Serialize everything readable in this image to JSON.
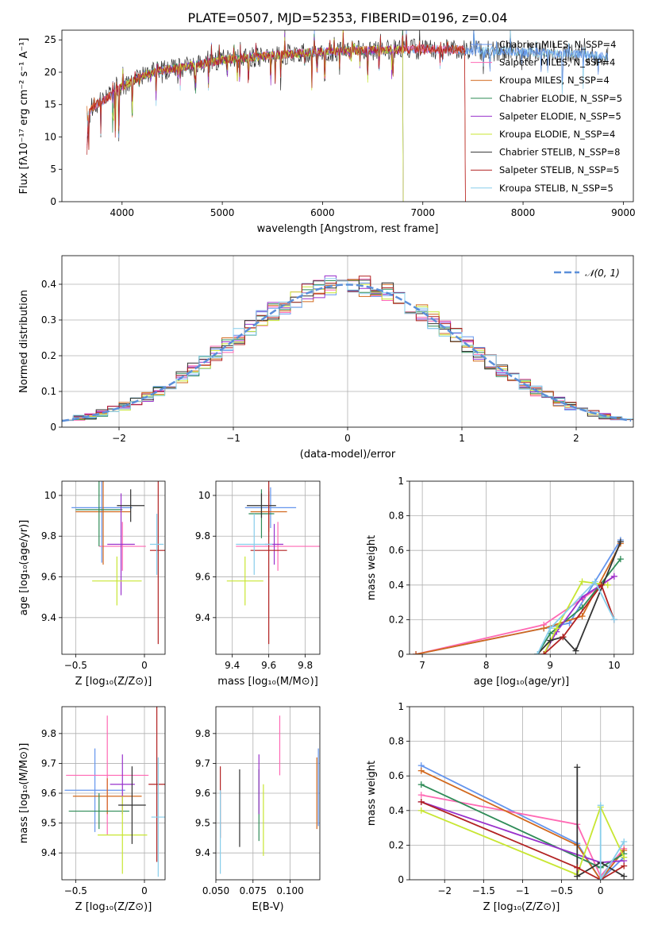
{
  "figure": {
    "title": "PLATE=0507, MJD=52353, FIBERID=0196, z=0.04"
  },
  "colors": [
    "#6495ed",
    "#ff69b4",
    "#d2691e",
    "#2e8b57",
    "#9932cc",
    "#c8e632",
    "#333333",
    "#b22222",
    "#87ceeb"
  ],
  "chart_data": [
    {
      "id": "spectrum",
      "type": "line",
      "xlabel": "wavelength [Angstrom, rest frame]",
      "ylabel": "Flux [fλ10⁻¹⁷ erg cm⁻² s⁻¹ A⁻¹]",
      "xlim": [
        3400,
        9100
      ],
      "ylim": [
        0,
        26.5
      ],
      "xticks": [
        4000,
        5000,
        6000,
        7000,
        8000,
        9000
      ],
      "yticks": [
        0,
        5,
        10,
        15,
        20,
        25
      ],
      "grid": false,
      "legend_position": "upper right",
      "continuum": {
        "x": [
          3650,
          3700,
          3800,
          3900,
          4000,
          4100,
          4200,
          4400,
          4600,
          4800,
          5000,
          5200,
          5500,
          6000,
          6500,
          7000,
          7500,
          8000,
          8500,
          8850
        ],
        "y": [
          13,
          14.5,
          15.5,
          16.5,
          17.8,
          18.6,
          19.5,
          20.3,
          20.8,
          21.3,
          21.9,
          22.2,
          22.6,
          23.2,
          23.4,
          23.6,
          23.4,
          23.1,
          22.8,
          22.4
        ]
      },
      "series": [
        {
          "name": "Chabrier MILES, N_SSP=4",
          "x_range": [
            3650,
            8850
          ]
        },
        {
          "name": "Salpeter MILES, N_SSP=4",
          "x_range": [
            3650,
            7420
          ]
        },
        {
          "name": "Kroupa MILES, N_SSP=4",
          "x_range": [
            3650,
            7420
          ]
        },
        {
          "name": "Chabrier ELODIE, N_SSP=5",
          "x_range": [
            3900,
            6800
          ]
        },
        {
          "name": "Salpeter ELODIE, N_SSP=5",
          "x_range": [
            3900,
            6800
          ]
        },
        {
          "name": "Kroupa ELODIE, N_SSP=4",
          "x_range": [
            3900,
            6800
          ]
        },
        {
          "name": "Chabrier STELIB, N_SSP=8",
          "x_range": [
            3650,
            8850
          ]
        },
        {
          "name": "Salpeter STELIB, N_SSP=5",
          "x_range": [
            3650,
            7420
          ]
        },
        {
          "name": "Kroupa STELIB, N_SSP=5",
          "x_range": [
            3650,
            8850
          ]
        }
      ]
    },
    {
      "id": "residuals",
      "type": "histogram",
      "xlabel": "(data-model)/error",
      "ylabel": "Normed distribution",
      "xlim": [
        -2.5,
        2.5
      ],
      "ylim": [
        0,
        0.48
      ],
      "xticks": [
        -2,
        -1,
        0,
        1,
        2
      ],
      "yticks": [
        0.0,
        0.1,
        0.2,
        0.3,
        0.4
      ],
      "grid": true,
      "legend_position": "upper right",
      "reference": {
        "name": "𝒩(0, 1)",
        "mean": 0,
        "sigma": 1
      },
      "bin_width": 0.1
    },
    {
      "id": "age_vs_Z",
      "type": "errorbar",
      "xlabel": "Z [log₁₀(Z/Z⊙)]",
      "ylabel": "age  [log₁₀(age/yr)]",
      "xlim": [
        -0.6,
        0.15
      ],
      "ylim": [
        9.22,
        10.07
      ],
      "xticks": [
        -0.5,
        0.0
      ],
      "yticks": [
        9.4,
        9.6,
        9.8,
        10.0
      ],
      "grid": true,
      "points": [
        {
          "x": -0.31,
          "y": 9.94,
          "xerr": 0.22,
          "yerr": 0.27
        },
        {
          "x": -0.16,
          "y": 9.75,
          "xerr": 0.17,
          "yerr": 0.12
        },
        {
          "x": -0.3,
          "y": 9.92,
          "xerr": 0.2,
          "yerr": 0.26
        },
        {
          "x": -0.33,
          "y": 9.93,
          "xerr": 0.17,
          "yerr": 0.18
        },
        {
          "x": -0.17,
          "y": 9.76,
          "xerr": 0.1,
          "yerr": 0.25
        },
        {
          "x": -0.2,
          "y": 9.58,
          "xerr": 0.18,
          "yerr": 0.12
        },
        {
          "x": -0.1,
          "y": 9.95,
          "xerr": 0.1,
          "yerr": 0.08
        },
        {
          "x": 0.1,
          "y": 9.73,
          "xerr": 0.06,
          "yerr": 0.46
        },
        {
          "x": 0.09,
          "y": 9.76,
          "xerr": 0.05,
          "yerr": 0.15
        }
      ]
    },
    {
      "id": "age_vs_mass",
      "type": "errorbar",
      "xlabel": "mass [log₁₀(M/M⊙)]",
      "ylabel": "",
      "xlim": [
        9.31,
        9.88
      ],
      "ylim": [
        9.22,
        10.07
      ],
      "xticks": [
        9.4,
        9.6,
        9.8
      ],
      "yticks": [
        9.4,
        9.6,
        9.8,
        10.0
      ],
      "grid": true,
      "points": [
        {
          "x": 9.61,
          "y": 9.94,
          "xerr": 0.14,
          "yerr": 0.1
        },
        {
          "x": 9.65,
          "y": 9.75,
          "xerr": 0.23,
          "yerr": 0.12
        },
        {
          "x": 9.6,
          "y": 9.92,
          "xerr": 0.1,
          "yerr": 0.1
        },
        {
          "x": 9.56,
          "y": 9.91,
          "xerr": 0.07,
          "yerr": 0.12
        },
        {
          "x": 9.63,
          "y": 9.76,
          "xerr": 0.05,
          "yerr": 0.1
        },
        {
          "x": 9.47,
          "y": 9.58,
          "xerr": 0.1,
          "yerr": 0.12
        },
        {
          "x": 9.56,
          "y": 9.95,
          "xerr": 0.08,
          "yerr": 0.06
        },
        {
          "x": 9.6,
          "y": 9.73,
          "xerr": 0.1,
          "yerr": 0.46
        },
        {
          "x": 9.52,
          "y": 9.76,
          "xerr": 0.1,
          "yerr": 0.15
        }
      ]
    },
    {
      "id": "weight_vs_age",
      "type": "line",
      "xlabel": "age  [log₁₀(age/yr)]",
      "ylabel": "mass weight",
      "xlim": [
        6.8,
        10.3
      ],
      "ylim": [
        0,
        1
      ],
      "xticks": [
        7,
        8,
        9,
        10
      ],
      "yticks": [
        0.0,
        0.2,
        0.4,
        0.6,
        0.8,
        1.0
      ],
      "grid": true,
      "series": [
        {
          "x": [
            6.9,
            8.9,
            9.3,
            10.1
          ],
          "y": [
            0.0,
            0.15,
            0.18,
            0.66
          ]
        },
        {
          "x": [
            6.9,
            8.9,
            9.5,
            10.0
          ],
          "y": [
            0.0,
            0.17,
            0.32,
            0.45
          ]
        },
        {
          "x": [
            6.9,
            8.9,
            9.5,
            10.1
          ],
          "y": [
            0.0,
            0.15,
            0.22,
            0.64
          ]
        },
        {
          "x": [
            8.8,
            9.0,
            9.5,
            10.1
          ],
          "y": [
            0.0,
            0.12,
            0.27,
            0.55
          ]
        },
        {
          "x": [
            8.9,
            9.1,
            9.5,
            10.0
          ],
          "y": [
            0.0,
            0.13,
            0.33,
            0.45
          ]
        },
        {
          "x": [
            8.9,
            9.1,
            9.5,
            9.9
          ],
          "y": [
            0.0,
            0.15,
            0.42,
            0.4
          ]
        },
        {
          "x": [
            8.8,
            9.0,
            9.2,
            9.4,
            10.1
          ],
          "y": [
            0.0,
            0.08,
            0.1,
            0.02,
            0.65
          ]
        },
        {
          "x": [
            8.9,
            9.2,
            9.8,
            10.0
          ],
          "y": [
            0.0,
            0.1,
            0.4,
            0.2
          ]
        },
        {
          "x": [
            8.8,
            9.0,
            9.7,
            10.0
          ],
          "y": [
            0.0,
            0.15,
            0.42,
            0.2
          ]
        }
      ]
    },
    {
      "id": "mass_vs_Z",
      "type": "errorbar",
      "xlabel": "Z [log₁₀(Z/Z⊙)]",
      "ylabel": "mass [log₁₀(M/M⊙)]",
      "xlim": [
        -0.6,
        0.15
      ],
      "ylim": [
        9.31,
        9.89
      ],
      "xticks": [
        -0.5,
        0.0
      ],
      "yticks": [
        9.4,
        9.5,
        9.6,
        9.7,
        9.8
      ],
      "grid": true,
      "points": [
        {
          "x": -0.36,
          "y": 9.61,
          "xerr": 0.22,
          "yerr": 0.14
        },
        {
          "x": -0.27,
          "y": 9.66,
          "xerr": 0.3,
          "yerr": 0.2
        },
        {
          "x": -0.27,
          "y": 9.59,
          "xerr": 0.25,
          "yerr": 0.06
        },
        {
          "x": -0.33,
          "y": 9.54,
          "xerr": 0.22,
          "yerr": 0.06
        },
        {
          "x": -0.16,
          "y": 9.63,
          "xerr": 0.09,
          "yerr": 0.1
        },
        {
          "x": -0.16,
          "y": 9.46,
          "xerr": 0.18,
          "yerr": 0.13
        },
        {
          "x": -0.09,
          "y": 9.56,
          "xerr": 0.1,
          "yerr": 0.13
        },
        {
          "x": 0.09,
          "y": 9.63,
          "xerr": 0.06,
          "yerr": 0.26
        },
        {
          "x": 0.1,
          "y": 9.52,
          "xerr": 0.05,
          "yerr": 0.2
        }
      ]
    },
    {
      "id": "mass_vs_ebv",
      "type": "errorbar",
      "xlabel": "E(B-V)",
      "ylabel": "",
      "xlim": [
        0.05,
        0.12
      ],
      "ylim": [
        9.31,
        9.89
      ],
      "xticks": [
        0.05,
        0.075,
        0.1
      ],
      "xtick_labels": [
        "0.050",
        "0.075",
        "0.100"
      ],
      "yticks": [
        9.4,
        9.5,
        9.6,
        9.7,
        9.8
      ],
      "grid": true,
      "points": [
        {
          "x": 0.119,
          "y": 9.62,
          "yerr": 0.13
        },
        {
          "x": 0.093,
          "y": 9.76,
          "yerr": 0.1
        },
        {
          "x": 0.118,
          "y": 9.6,
          "yerr": 0.12
        },
        {
          "x": 0.079,
          "y": 9.56,
          "yerr": 0.12
        },
        {
          "x": 0.079,
          "y": 9.63,
          "yerr": 0.1
        },
        {
          "x": 0.082,
          "y": 9.51,
          "yerr": 0.12
        },
        {
          "x": 0.066,
          "y": 9.55,
          "yerr": 0.13
        },
        {
          "x": 0.053,
          "y": 9.57,
          "yerr": 0.12
        },
        {
          "x": 0.053,
          "y": 9.47,
          "yerr": 0.14
        }
      ]
    },
    {
      "id": "weight_vs_Z",
      "type": "line",
      "xlabel": "Z [log₁₀(Z/Z⊙)]",
      "ylabel": "mass weight",
      "xlim": [
        -2.45,
        0.42
      ],
      "ylim": [
        0,
        1
      ],
      "xticks": [
        -2.0,
        -1.5,
        -1.0,
        -0.5,
        0.0
      ],
      "yticks": [
        0.0,
        0.2,
        0.4,
        0.6,
        0.8,
        1.0
      ],
      "grid": true,
      "series": [
        {
          "x": [
            -2.3,
            -0.3,
            0.0,
            0.3
          ],
          "y": [
            0.66,
            0.21,
            0.0,
            0.13
          ]
        },
        {
          "x": [
            -2.3,
            -0.3,
            0.0,
            0.3
          ],
          "y": [
            0.49,
            0.32,
            0.02,
            0.18
          ]
        },
        {
          "x": [
            -2.3,
            -0.3,
            0.0,
            0.3
          ],
          "y": [
            0.63,
            0.2,
            0.0,
            0.17
          ]
        },
        {
          "x": [
            -2.3,
            0.0,
            0.3
          ],
          "y": [
            0.55,
            0.07,
            0.15
          ]
        },
        {
          "x": [
            -2.3,
            0.0,
            0.3
          ],
          "y": [
            0.45,
            0.1,
            0.11
          ]
        },
        {
          "x": [
            -2.3,
            -0.3,
            0.0,
            0.3
          ],
          "y": [
            0.4,
            0.03,
            0.42,
            0.13
          ]
        },
        {
          "x": [
            -0.3,
            -0.3,
            0.0,
            0.3
          ],
          "y": [
            0.65,
            0.02,
            0.1,
            0.02
          ]
        },
        {
          "x": [
            -2.3,
            -0.3,
            0.0,
            0.3
          ],
          "y": [
            0.45,
            0.07,
            0.0,
            0.08
          ]
        },
        {
          "x": [
            0.0,
            0.0,
            0.3
          ],
          "y": [
            0.43,
            0.0,
            0.22
          ]
        }
      ]
    }
  ]
}
